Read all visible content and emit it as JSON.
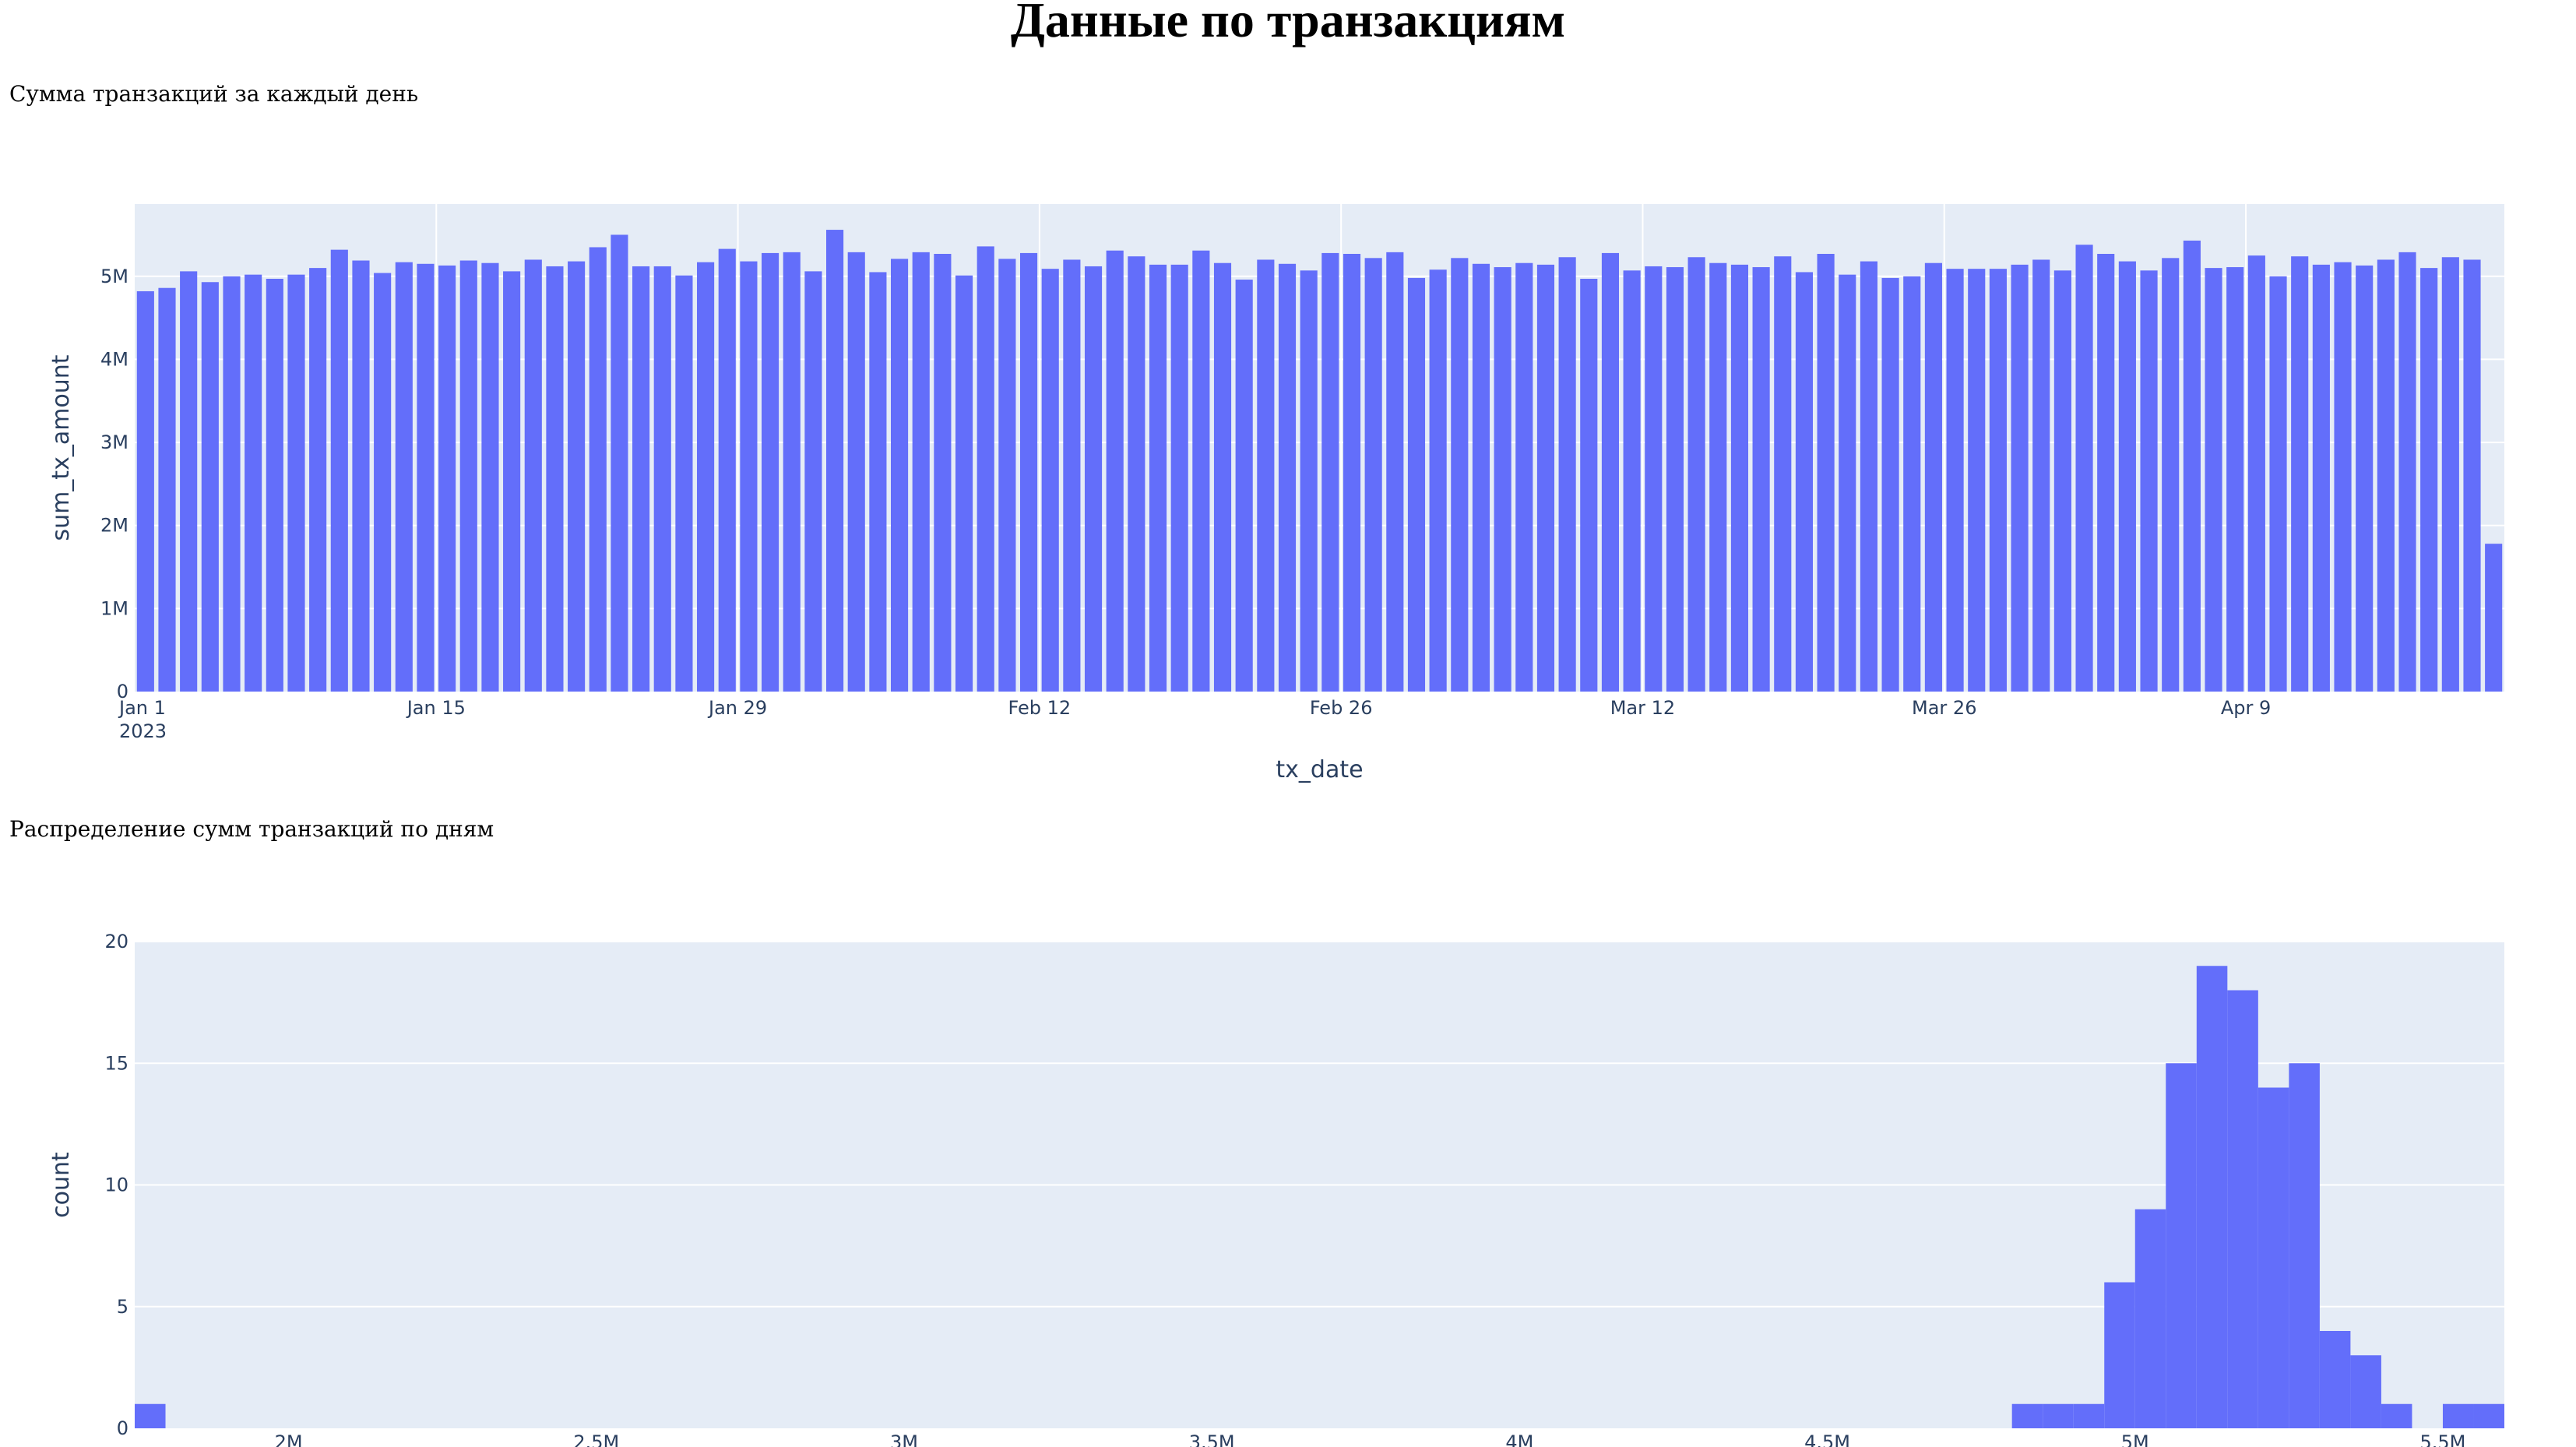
{
  "page": {
    "title": "Данные по транзакциям"
  },
  "colors": {
    "bar": "#636efa",
    "plot_bg": "#e5ecf6",
    "grid": "#ffffff",
    "text": "#2a3f5f"
  },
  "chart_data": [
    {
      "type": "bar",
      "caption": "Сумма транзакций за каждый день",
      "xlabel": "tx_date",
      "ylabel": "sum_tx_amount",
      "x_start": "2023-01-01",
      "x_end": "2023-04-20",
      "x_tick_labels": [
        "Jan 1\n2023",
        "Jan 15",
        "Jan 29",
        "Feb 12",
        "Feb 26",
        "Mar 12",
        "Mar 26",
        "Apr 9"
      ],
      "y_tick_labels": [
        "0",
        "1M",
        "2M",
        "3M",
        "4M",
        "5M"
      ],
      "ylim": [
        0,
        5870000
      ],
      "grid": true,
      "values": [
        4820000,
        4860000,
        5060000,
        4930000,
        5000000,
        5020000,
        4970000,
        5020000,
        5100000,
        5320000,
        5190000,
        5040000,
        5170000,
        5150000,
        5130000,
        5190000,
        5160000,
        5060000,
        5200000,
        5120000,
        5180000,
        5350000,
        5500000,
        5120000,
        5120000,
        5010000,
        5170000,
        5330000,
        5180000,
        5280000,
        5290000,
        5060000,
        5560000,
        5290000,
        5050000,
        5210000,
        5290000,
        5270000,
        5010000,
        5360000,
        5210000,
        5280000,
        5090000,
        5200000,
        5120000,
        5310000,
        5240000,
        5140000,
        5140000,
        5310000,
        5160000,
        4960000,
        5200000,
        5150000,
        5070000,
        5280000,
        5270000,
        5220000,
        5290000,
        4980000,
        5080000,
        5220000,
        5150000,
        5110000,
        5160000,
        5140000,
        5230000,
        4970000,
        5280000,
        5070000,
        5120000,
        5110000,
        5230000,
        5160000,
        5140000,
        5110000,
        5240000,
        5050000,
        5270000,
        5020000,
        5180000,
        4980000,
        5000000,
        5160000,
        5090000,
        5090000,
        5090000,
        5140000,
        5200000,
        5070000,
        5380000,
        5270000,
        5180000,
        5070000,
        5220000,
        5430000,
        5100000,
        5110000,
        5250000,
        5000000,
        5240000,
        5140000,
        5170000,
        5130000,
        5200000,
        5290000,
        5100000,
        5230000,
        5200000,
        1780000
      ]
    },
    {
      "type": "bar",
      "subtype": "histogram",
      "caption": "Распределение сумм транзакций по дням",
      "xlabel": "",
      "ylabel": "count",
      "bin_width": 50000,
      "xlim": [
        1750000,
        5600000
      ],
      "ylim": [
        0,
        20
      ],
      "grid": true,
      "x_tick_labels": [
        "2M",
        "2.5M",
        "3M",
        "3.5M",
        "4M",
        "4.5M",
        "5M",
        "5.5M"
      ],
      "y_tick_labels": [
        "0",
        "5",
        "10",
        "15",
        "20"
      ],
      "bins": [
        {
          "x0": 1750000,
          "count": 1
        },
        {
          "x0": 4800000,
          "count": 1
        },
        {
          "x0": 4850000,
          "count": 1
        },
        {
          "x0": 4900000,
          "count": 1
        },
        {
          "x0": 4950000,
          "count": 6
        },
        {
          "x0": 5000000,
          "count": 9
        },
        {
          "x0": 5050000,
          "count": 15
        },
        {
          "x0": 5100000,
          "count": 19
        },
        {
          "x0": 5150000,
          "count": 18
        },
        {
          "x0": 5200000,
          "count": 14
        },
        {
          "x0": 5250000,
          "count": 15
        },
        {
          "x0": 5300000,
          "count": 4
        },
        {
          "x0": 5350000,
          "count": 3
        },
        {
          "x0": 5400000,
          "count": 1
        },
        {
          "x0": 5500000,
          "count": 1
        },
        {
          "x0": 5550000,
          "count": 1
        }
      ]
    }
  ]
}
